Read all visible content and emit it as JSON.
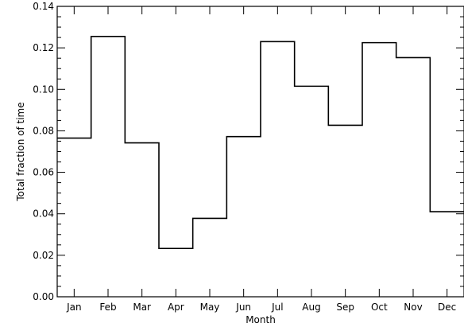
{
  "chart_data": {
    "type": "line",
    "style": "step",
    "categories": [
      "Jan",
      "Feb",
      "Mar",
      "Apr",
      "May",
      "Jun",
      "Jul",
      "Aug",
      "Sep",
      "Oct",
      "Nov",
      "Dec"
    ],
    "series": [
      {
        "values": [
          0.0765,
          0.1255,
          0.0742,
          0.0233,
          0.0378,
          0.0772,
          0.123,
          0.1015,
          0.0827,
          0.1225,
          0.1153,
          0.041
        ]
      }
    ],
    "title": "",
    "xlabel": "Month",
    "ylabel": "Total fraction of time",
    "ylim": [
      0,
      0.14
    ],
    "yticks": [
      "0.00",
      "0.02",
      "0.04",
      "0.06",
      "0.08",
      "0.10",
      "0.12",
      "0.14"
    ],
    "grid": false,
    "colors": {
      "line": "#000000",
      "axes": "#000000",
      "background": "#ffffff"
    }
  }
}
